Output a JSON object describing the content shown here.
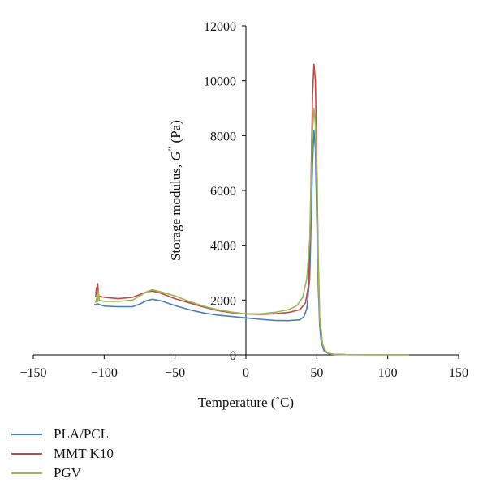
{
  "chart_data": {
    "type": "line",
    "xlabel": "Temperature (˚C)",
    "ylabel_prefix": "Storage modulus, ",
    "ylabel_symbol": "G",
    "ylabel_prime": "′′",
    "ylabel_unit": " (Pa)",
    "xlim": [
      -150,
      150
    ],
    "ylim": [
      0,
      12000
    ],
    "x_ticks": [
      -150,
      -100,
      -50,
      0,
      50,
      100,
      150
    ],
    "y_ticks": [
      0,
      2000,
      4000,
      6000,
      8000,
      10000,
      12000
    ],
    "x_tick_labels": [
      "−150",
      "−100",
      "−50",
      "0",
      "50",
      "100",
      "150"
    ],
    "y_tick_labels": [
      "0",
      "2000",
      "4000",
      "6000",
      "8000",
      "10000",
      "12000"
    ],
    "grid": false,
    "legend_position": "bottom-left",
    "series": [
      {
        "name": "PLA/PCL",
        "color": "#4a7ebb",
        "x": [
          -107,
          -106,
          -105,
          -100,
          -90,
          -80,
          -75,
          -70,
          -66,
          -60,
          -50,
          -40,
          -30,
          -20,
          -10,
          0,
          10,
          20,
          30,
          38,
          41,
          43,
          45,
          46,
          47,
          48,
          49,
          50,
          51,
          52,
          53,
          55,
          58,
          62,
          70,
          90,
          115
        ],
        "y": [
          1850,
          1820,
          1870,
          1780,
          1760,
          1760,
          1850,
          1980,
          2030,
          1970,
          1800,
          1650,
          1530,
          1450,
          1400,
          1350,
          1300,
          1260,
          1250,
          1280,
          1400,
          1700,
          2800,
          4800,
          7000,
          8200,
          7500,
          5000,
          2500,
          1100,
          500,
          150,
          50,
          20,
          10,
          5,
          5
        ]
      },
      {
        "name": "MMT K10",
        "color": "#be4b48",
        "x": [
          -106,
          -105.5,
          -105,
          -104.5,
          -104,
          -100,
          -90,
          -80,
          -75,
          -70,
          -66,
          -60,
          -50,
          -40,
          -30,
          -20,
          -10,
          0,
          10,
          20,
          30,
          38,
          42,
          44,
          45,
          46,
          47,
          48,
          49,
          50,
          51,
          52,
          54,
          56,
          58,
          62,
          70,
          90,
          115
        ],
        "y": [
          2100,
          2450,
          2250,
          2600,
          2150,
          2100,
          2050,
          2100,
          2200,
          2300,
          2330,
          2250,
          2050,
          1900,
          1750,
          1620,
          1540,
          1500,
          1480,
          1500,
          1550,
          1650,
          1900,
          2500,
          3800,
          6500,
          9500,
          10600,
          10000,
          7000,
          3500,
          1400,
          400,
          150,
          60,
          20,
          10,
          5,
          5
        ]
      },
      {
        "name": "PGV",
        "color": "#98b954",
        "x": [
          -106,
          -105,
          -104.5,
          -104,
          -103.5,
          -100,
          -90,
          -80,
          -75,
          -70,
          -66,
          -60,
          -50,
          -40,
          -30,
          -20,
          -10,
          0,
          10,
          20,
          30,
          36,
          40,
          43,
          45,
          46,
          47,
          48,
          49,
          50,
          51,
          52,
          54,
          56,
          58,
          62,
          70,
          90,
          115
        ],
        "y": [
          1900,
          2150,
          1950,
          2350,
          2000,
          1950,
          1950,
          2000,
          2150,
          2300,
          2380,
          2300,
          2150,
          1950,
          1780,
          1650,
          1560,
          1500,
          1500,
          1550,
          1650,
          1800,
          2100,
          2800,
          4200,
          6200,
          8200,
          9000,
          8400,
          6200,
          3200,
          1300,
          400,
          150,
          60,
          20,
          10,
          5,
          5
        ]
      }
    ]
  }
}
